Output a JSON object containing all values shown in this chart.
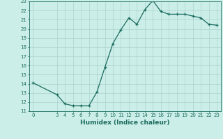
{
  "x": [
    0,
    3,
    4,
    5,
    6,
    7,
    8,
    9,
    10,
    11,
    12,
    13,
    14,
    15,
    16,
    17,
    18,
    19,
    20,
    21,
    22,
    23
  ],
  "y": [
    14.1,
    12.8,
    11.8,
    11.6,
    11.6,
    11.6,
    13.1,
    15.8,
    18.4,
    19.9,
    21.2,
    20.5,
    22.1,
    23.1,
    21.9,
    21.6,
    21.6,
    21.6,
    21.4,
    21.2,
    20.5,
    20.4
  ],
  "line_color": "#1a6b5e",
  "bg_color": "#cceee8",
  "grid_color": "#aad4cc",
  "xlabel": "Humidex (Indice chaleur)",
  "xlim": [
    -0.5,
    23.5
  ],
  "ylim": [
    11,
    23
  ],
  "yticks": [
    11,
    12,
    13,
    14,
    15,
    16,
    17,
    18,
    19,
    20,
    21,
    22,
    23
  ],
  "xticks": [
    0,
    3,
    4,
    5,
    6,
    7,
    8,
    9,
    10,
    11,
    12,
    13,
    14,
    15,
    16,
    17,
    18,
    19,
    20,
    21,
    22,
    23
  ],
  "tick_fontsize": 5.0,
  "xlabel_fontsize": 6.5,
  "line_width": 0.9,
  "marker": "+",
  "marker_size": 3.5,
  "marker_edge_width": 0.9
}
